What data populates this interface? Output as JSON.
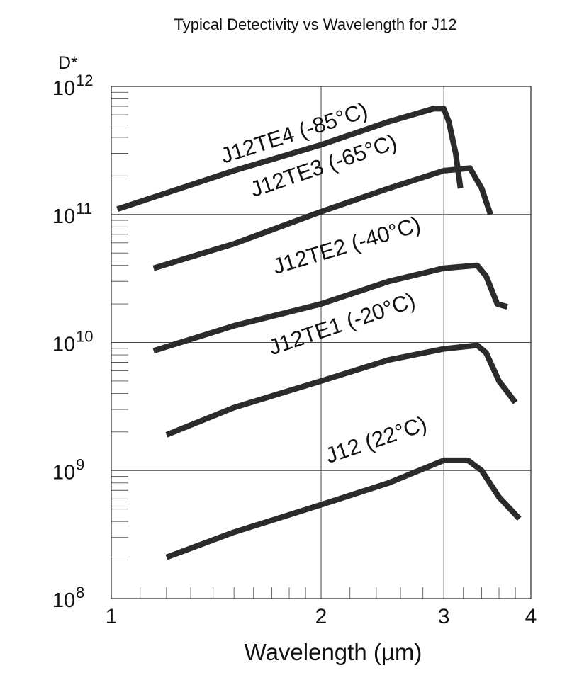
{
  "chart_data": {
    "type": "line",
    "title": "Typical Detectivity vs Wavelength for J12",
    "xlabel": "Wavelength (µm)",
    "ylabel": "D*",
    "x_scale": "log",
    "y_scale": "log",
    "xlim": [
      1,
      4
    ],
    "ylim": [
      100000000.0,
      1000000000000.0
    ],
    "grid": true,
    "x_ticks": [
      {
        "value": 1,
        "label": "1"
      },
      {
        "value": 2,
        "label": "2"
      },
      {
        "value": 3,
        "label": "3"
      },
      {
        "value": 4,
        "label": "4"
      }
    ],
    "y_ticks": [
      {
        "value": 100000000.0,
        "base": "10",
        "exp": "8"
      },
      {
        "value": 1000000000.0,
        "base": "10",
        "exp": "9"
      },
      {
        "value": 10000000000.0,
        "base": "10",
        "exp": "10"
      },
      {
        "value": 100000000000.0,
        "base": "10",
        "exp": "11"
      },
      {
        "value": 1000000000000.0,
        "base": "10",
        "exp": "12"
      }
    ],
    "series": [
      {
        "name": "J12TE4 (-85°C)",
        "points": [
          [
            1.02,
            110000000000.0
          ],
          [
            1.5,
            220000000000.0
          ],
          [
            2.0,
            350000000000.0
          ],
          [
            2.5,
            530000000000.0
          ],
          [
            2.9,
            670000000000.0
          ],
          [
            3.0,
            670000000000.0
          ],
          [
            3.05,
            530000000000.0
          ],
          [
            3.12,
            300000000000.0
          ],
          [
            3.17,
            160000000000.0
          ]
        ]
      },
      {
        "name": "J12TE3 (-65°C)",
        "points": [
          [
            1.15,
            38000000000.0
          ],
          [
            1.5,
            59000000000.0
          ],
          [
            2.0,
            105000000000.0
          ],
          [
            2.5,
            160000000000.0
          ],
          [
            3.0,
            220000000000.0
          ],
          [
            3.27,
            230000000000.0
          ],
          [
            3.4,
            160000000000.0
          ],
          [
            3.5,
            100000000000.0
          ]
        ]
      },
      {
        "name": "J12TE2 (-40°C)",
        "points": [
          [
            1.15,
            8600000000.0
          ],
          [
            1.5,
            13500000000.0
          ],
          [
            2.0,
            20000000000.0
          ],
          [
            2.5,
            30000000000.0
          ],
          [
            3.0,
            38000000000.0
          ],
          [
            3.35,
            40000000000.0
          ],
          [
            3.45,
            33000000000.0
          ],
          [
            3.58,
            20000000000.0
          ],
          [
            3.7,
            19000000000.0
          ]
        ]
      },
      {
        "name": "J12TE1 (-20°C)",
        "points": [
          [
            1.2,
            1900000000.0
          ],
          [
            1.5,
            3100000000.0
          ],
          [
            2.0,
            5000000000.0
          ],
          [
            2.5,
            7300000000.0
          ],
          [
            3.0,
            8900000000.0
          ],
          [
            3.35,
            9500000000.0
          ],
          [
            3.45,
            8300000000.0
          ],
          [
            3.6,
            5000000000.0
          ],
          [
            3.8,
            3400000000.0
          ]
        ]
      },
      {
        "name": "J12 (22°C)",
        "points": [
          [
            1.2,
            210000000.0
          ],
          [
            1.5,
            330000000.0
          ],
          [
            2.0,
            540000000.0
          ],
          [
            2.5,
            800000000.0
          ],
          [
            3.0,
            1200000000.0
          ],
          [
            3.25,
            1200000000.0
          ],
          [
            3.4,
            1000000000.0
          ],
          [
            3.6,
            620000000.0
          ],
          [
            3.85,
            420000000.0
          ]
        ]
      }
    ]
  }
}
